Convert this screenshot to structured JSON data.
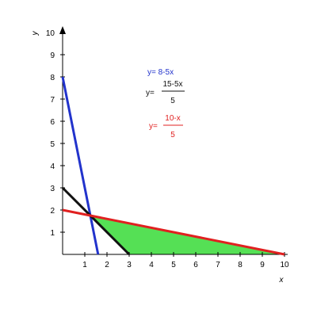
{
  "chart_data": {
    "type": "line",
    "xlabel": "x",
    "ylabel": "y",
    "xlim": [
      0,
      10
    ],
    "ylim": [
      0,
      10
    ],
    "x_ticks": [
      1,
      2,
      3,
      4,
      5,
      6,
      7,
      8,
      9,
      10
    ],
    "y_ticks": [
      1,
      2,
      3,
      4,
      5,
      6,
      7,
      8,
      9,
      10
    ],
    "grid": false,
    "lines": [
      {
        "equation": "y = 8 - 5x",
        "color": "#2233cc",
        "points": [
          [
            0,
            8
          ],
          [
            1.6,
            0
          ]
        ]
      },
      {
        "equation": "y = (15 - 5x) / 5",
        "color": "#111111",
        "points": [
          [
            0,
            3
          ],
          [
            3,
            0
          ]
        ]
      },
      {
        "equation": "y = (10 - x) / 5",
        "color": "#e02020",
        "points": [
          [
            0,
            2
          ],
          [
            10,
            0
          ]
        ]
      }
    ],
    "shaded_region": {
      "color": "#55e055",
      "vertices": [
        [
          1.25,
          1.75
        ],
        [
          3,
          0
        ],
        [
          10,
          0
        ]
      ]
    },
    "annotations": {
      "blue": {
        "text": "y= 8-5x",
        "color": "#2233cc"
      },
      "black": {
        "prefix": "y=",
        "numerator": "15-5x",
        "denominator": "5",
        "color": "#111111"
      },
      "red": {
        "prefix": "y=",
        "numerator": "10-x",
        "denominator": "5",
        "color": "#e02020"
      }
    }
  }
}
